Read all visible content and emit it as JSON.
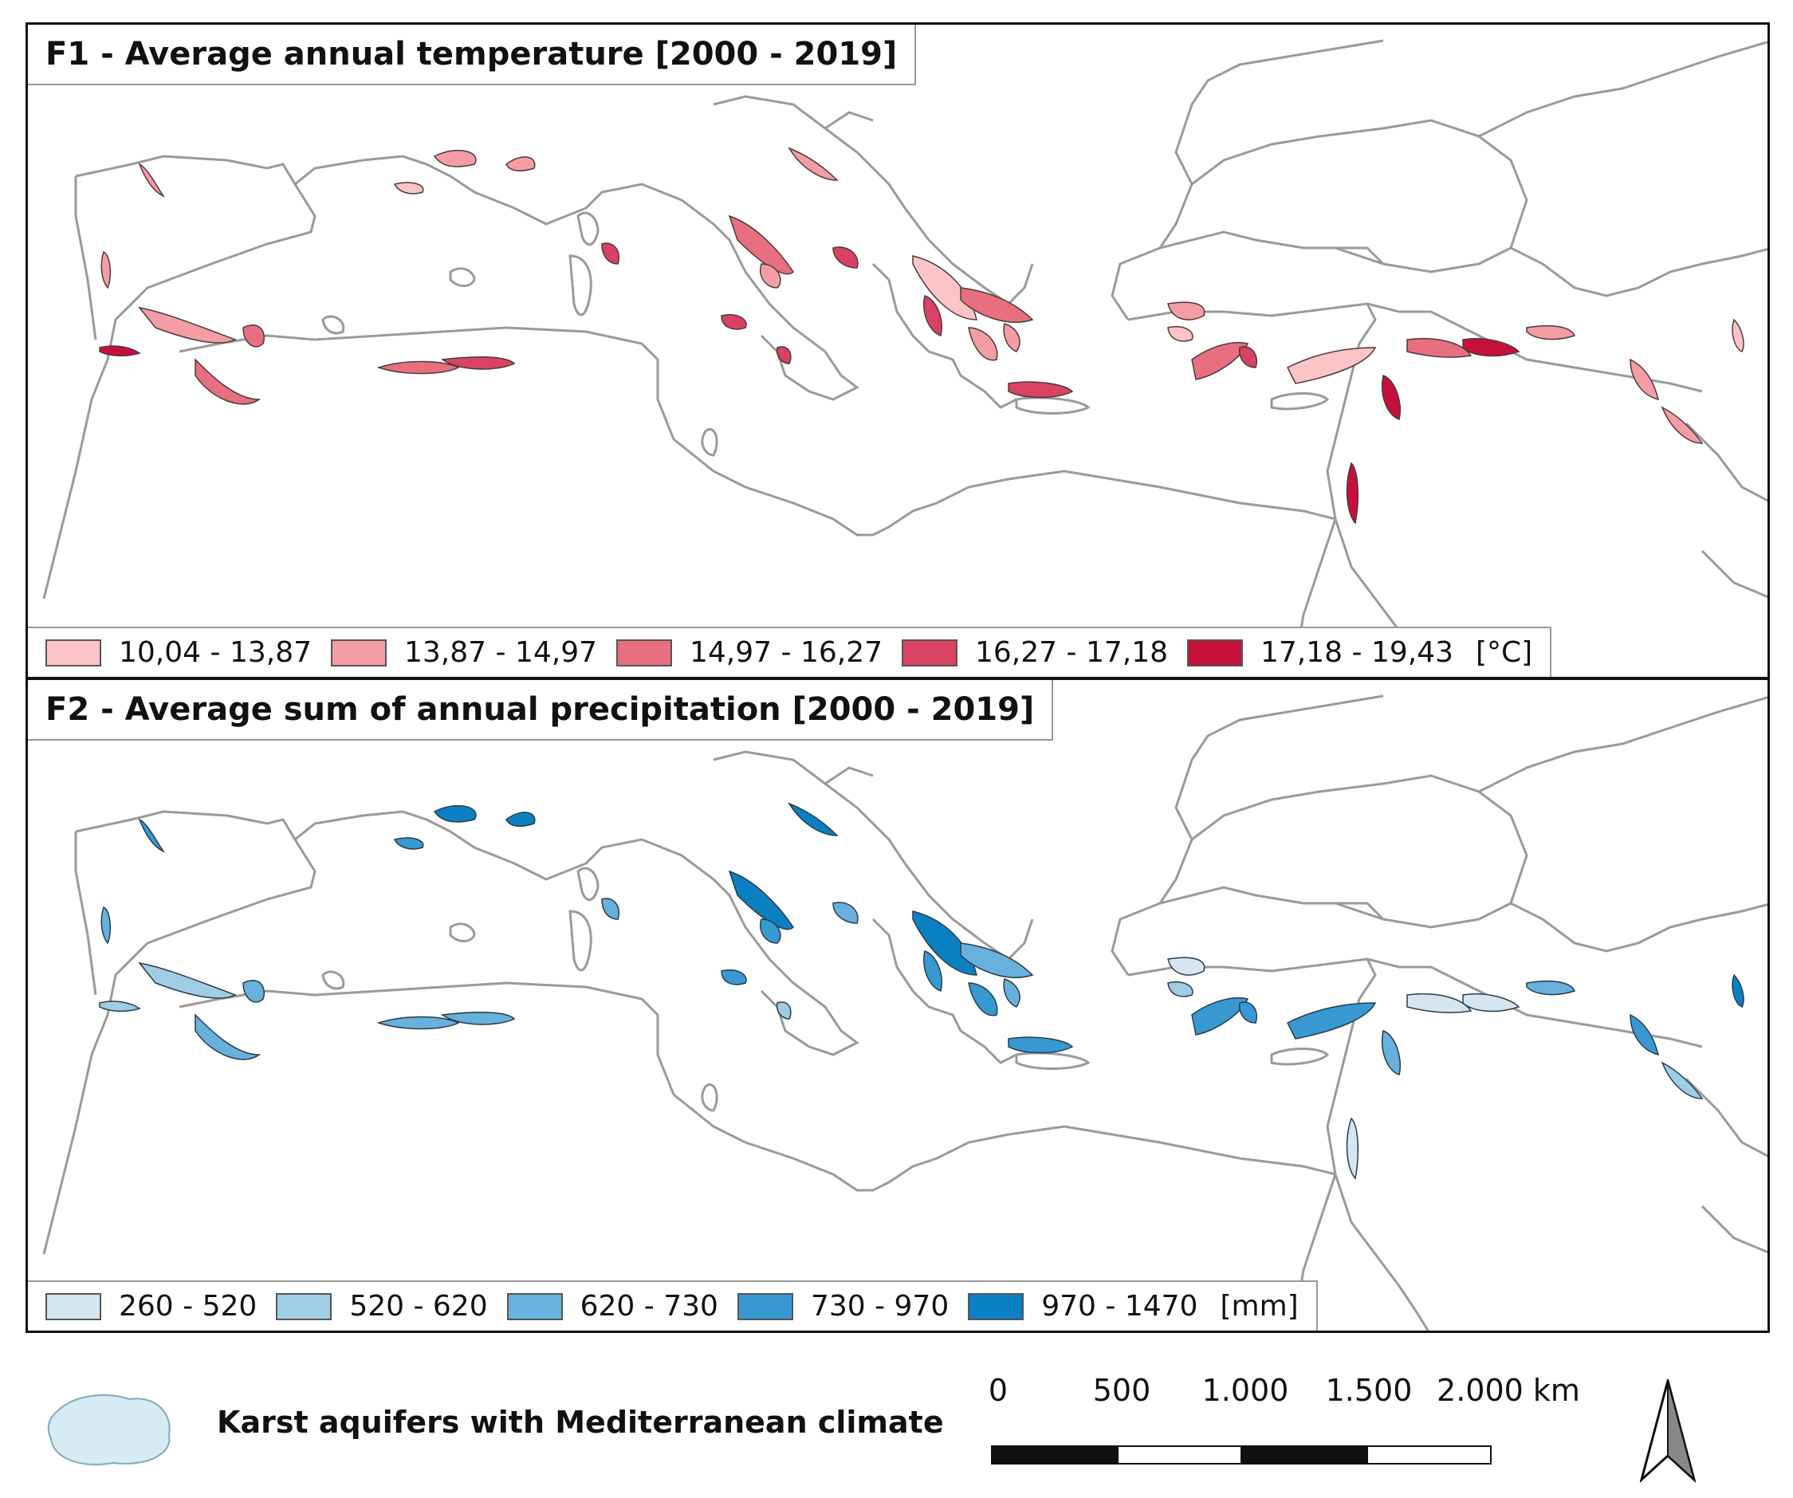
{
  "colors": {
    "land_outline": "#9a9a9a",
    "polygon_stroke": "#4a3a3a",
    "sample_fill": "#d6ebf3"
  },
  "panels": [
    {
      "id": "F1",
      "title": "F1 - Average annual temperature [2000 - 2019]",
      "unit": "[°C]",
      "legend": [
        {
          "label": "10,04 - 13,87",
          "color": "#fcc4c6"
        },
        {
          "label": "13,87 - 14,97",
          "color": "#f49da5"
        },
        {
          "label": "14,97 - 16,27",
          "color": "#e76f80"
        },
        {
          "label": "16,27 - 17,18",
          "color": "#d94262"
        },
        {
          "label": "17,18 - 19,43",
          "color": "#c5103a"
        }
      ]
    },
    {
      "id": "F2",
      "title": "F2 - Average sum of annual precipitation [2000 - 2019]",
      "unit": "[mm]",
      "legend": [
        {
          "label": "260 - 520",
          "color": "#d5e6f1"
        },
        {
          "label": "520 - 620",
          "color": "#9fcde6"
        },
        {
          "label": "620 - 730",
          "color": "#67b1dc"
        },
        {
          "label": "730 - 970",
          "color": "#3899d2"
        },
        {
          "label": "970 - 1470",
          "color": "#0a80c2"
        }
      ]
    }
  ],
  "footer": {
    "sample_label": "Karst aquifers with Mediterranean climate",
    "scale_labels": [
      "0",
      "500",
      "1.000",
      "1.500",
      "2.000 km"
    ],
    "north_icon": "north-arrow-icon"
  }
}
